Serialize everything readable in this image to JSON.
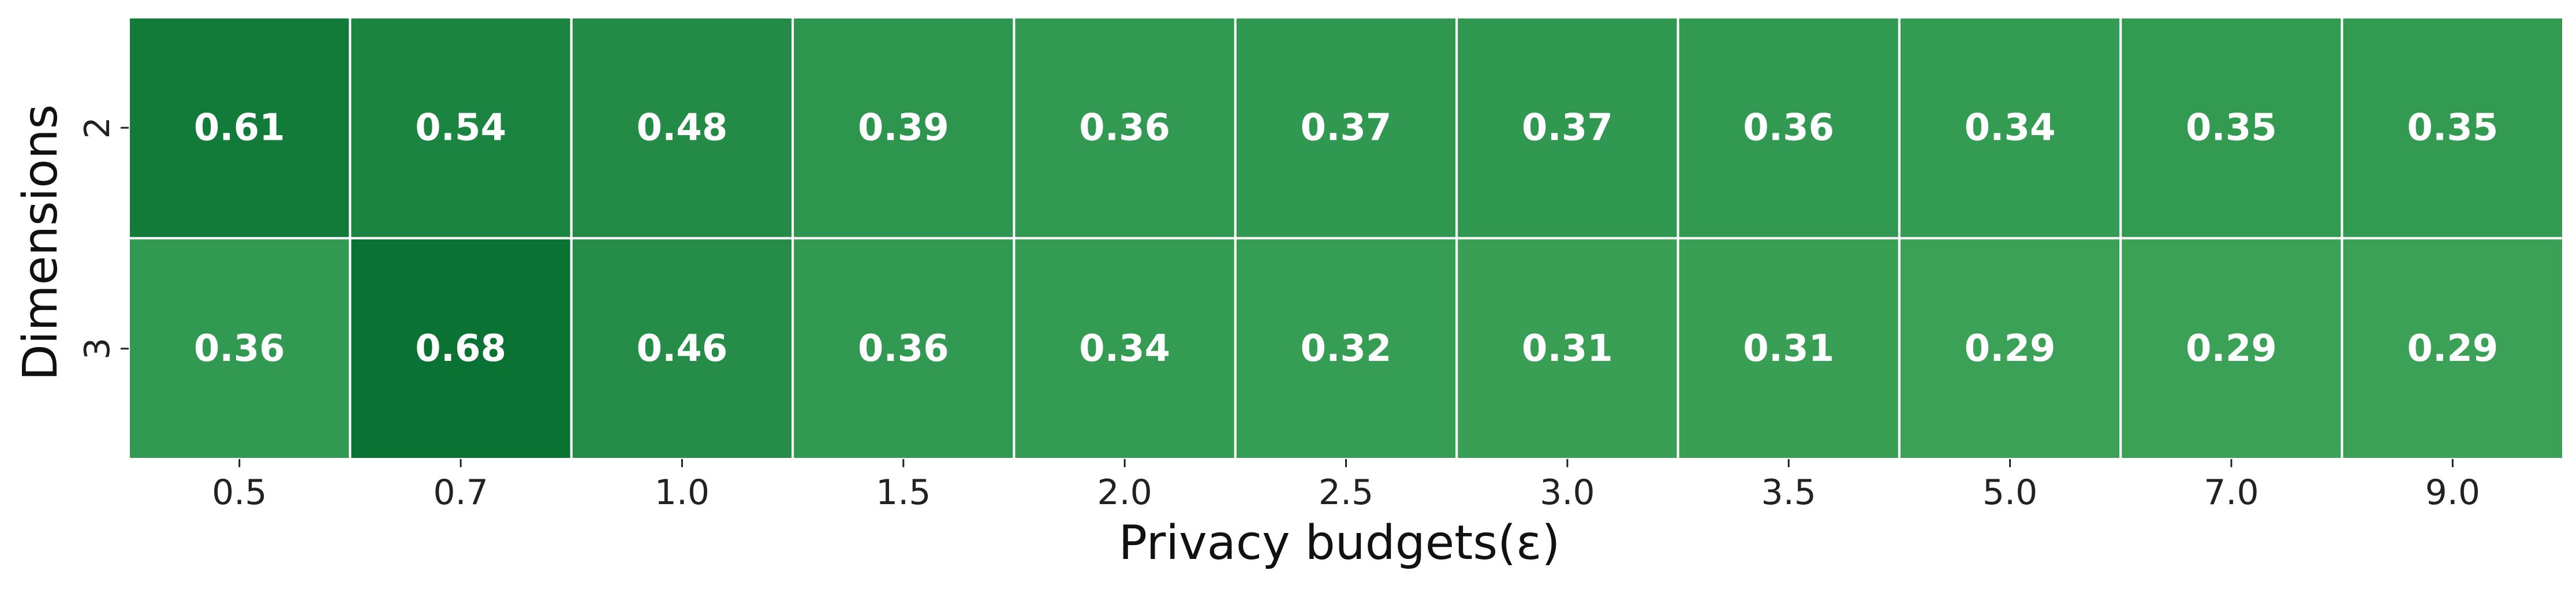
{
  "chart_data": {
    "type": "heatmap",
    "xlabel": "Privacy budgets(ε)",
    "ylabel": "Dimensions",
    "x_categories": [
      "0.5",
      "0.7",
      "1.0",
      "1.5",
      "2.0",
      "2.5",
      "3.0",
      "3.5",
      "5.0",
      "7.0",
      "9.0"
    ],
    "y_categories": [
      "2",
      "3"
    ],
    "values": [
      [
        0.61,
        0.54,
        0.48,
        0.39,
        0.36,
        0.37,
        0.37,
        0.36,
        0.34,
        0.35,
        0.35
      ],
      [
        0.36,
        0.68,
        0.46,
        0.36,
        0.34,
        0.32,
        0.31,
        0.31,
        0.29,
        0.29,
        0.29
      ]
    ],
    "colormap": {
      "low": "#3aa157",
      "high": "#0a7333"
    },
    "value_range": [
      0.29,
      0.68
    ],
    "annotation_color": "#ffffff",
    "cell_border_color": "#ffffff",
    "grid": false,
    "legend": "none"
  }
}
